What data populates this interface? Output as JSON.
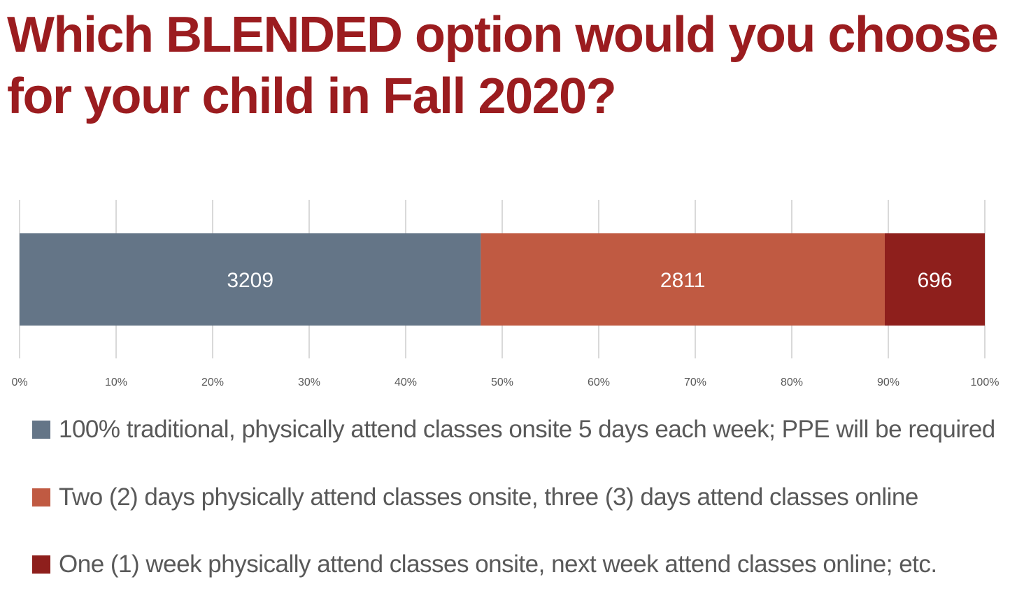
{
  "title": "Which BLENDED option would you choose for your child in Fall 2020?",
  "chart_data": {
    "type": "bar",
    "orientation": "horizontal",
    "stacked": "percent",
    "categories": [
      ""
    ],
    "series": [
      {
        "name": "100% traditional, physically attend classes onsite 5 days each week; PPE will be required",
        "values": [
          3209
        ],
        "color": "#647587"
      },
      {
        "name": "Two (2) days physically attend classes onsite, three (3) days attend classes online",
        "values": [
          2811
        ],
        "color": "#c05a42"
      },
      {
        "name": "One (1) week physically attend classes onsite, next week attend classes online; etc.",
        "values": [
          696
        ],
        "color": "#8e1f1c"
      }
    ],
    "xlim": [
      0,
      100
    ],
    "x_ticks": [
      "0%",
      "10%",
      "20%",
      "30%",
      "40%",
      "50%",
      "60%",
      "70%",
      "80%",
      "90%",
      "100%"
    ],
    "grid": true,
    "legend": "bottom"
  }
}
